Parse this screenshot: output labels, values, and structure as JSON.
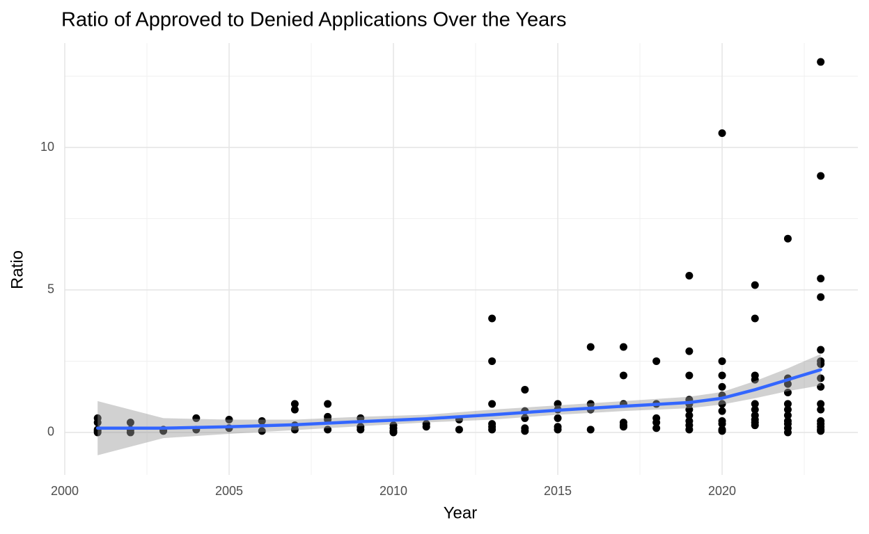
{
  "chart_data": {
    "type": "scatter",
    "title": "Ratio of Approved to Denied Applications Over the Years",
    "x_label": "Year",
    "y_label": "Ratio",
    "xlim": [
      2000,
      2024.13
    ],
    "ylim": [
      -1.49,
      13.66
    ],
    "xticks": [
      2000,
      2005,
      2010,
      2015,
      2020
    ],
    "yticks": [
      0,
      5,
      10
    ],
    "grid": true,
    "minor_grid": true,
    "color": "#000000",
    "x": [
      2001,
      2001,
      2001,
      2001,
      2001,
      2002,
      2002,
      2002,
      2003,
      2003,
      2004,
      2004,
      2005,
      2005,
      2006,
      2006,
      2007,
      2007,
      2007,
      2007,
      2008,
      2008,
      2008,
      2008,
      2009,
      2009,
      2009,
      2010,
      2010,
      2010,
      2010,
      2011,
      2011,
      2012,
      2012,
      2013,
      2013,
      2013,
      2013,
      2013,
      2013,
      2014,
      2014,
      2014,
      2014,
      2014,
      2015,
      2015,
      2015,
      2015,
      2015,
      2016,
      2016,
      2016,
      2016,
      2017,
      2017,
      2017,
      2017,
      2017,
      2017,
      2018,
      2018,
      2018,
      2018,
      2018,
      2019,
      2019,
      2019,
      2019,
      2019,
      2019,
      2019,
      2019,
      2019,
      2019,
      2020,
      2020,
      2020,
      2020,
      2020,
      2020,
      2020,
      2020,
      2020,
      2020,
      2020,
      2021,
      2021,
      2021,
      2021,
      2021,
      2021,
      2021,
      2021,
      2021,
      2021,
      2022,
      2022,
      2022,
      2022,
      2022,
      2022,
      2022,
      2022,
      2022,
      2022,
      2022,
      2023,
      2023,
      2023,
      2023,
      2023,
      2023,
      2023,
      2023,
      2023,
      2023,
      2023,
      2023,
      2023,
      2023,
      2023,
      2023
    ],
    "y": [
      0.5,
      0.35,
      0.1,
      0.05,
      0.0,
      0.35,
      0.1,
      0.0,
      0.1,
      0.05,
      0.5,
      0.1,
      0.45,
      0.15,
      0.4,
      0.05,
      1.0,
      0.8,
      0.25,
      0.1,
      1.0,
      0.55,
      0.45,
      0.1,
      0.5,
      0.2,
      0.1,
      0.25,
      0.15,
      0.05,
      0.0,
      0.3,
      0.2,
      0.45,
      0.1,
      4.0,
      2.5,
      1.0,
      0.3,
      0.2,
      0.1,
      1.5,
      0.75,
      0.5,
      0.15,
      0.05,
      1.0,
      0.8,
      0.5,
      0.2,
      0.1,
      3.0,
      1.0,
      0.8,
      0.1,
      3.0,
      2.0,
      1.0,
      0.35,
      0.25,
      0.2,
      2.5,
      1.0,
      0.5,
      0.35,
      0.15,
      5.5,
      2.85,
      2.0,
      1.15,
      1.0,
      0.8,
      0.6,
      0.4,
      0.25,
      0.1,
      10.5,
      2.5,
      2.0,
      1.6,
      1.3,
      1.0,
      0.75,
      0.4,
      0.3,
      0.1,
      0.05,
      5.17,
      4.0,
      2.0,
      1.85,
      1.0,
      0.8,
      0.6,
      0.45,
      0.35,
      0.25,
      6.8,
      1.9,
      1.7,
      1.4,
      1.0,
      0.8,
      0.6,
      0.4,
      0.3,
      0.15,
      0.0,
      13.0,
      9.0,
      5.4,
      4.75,
      2.9,
      2.5,
      2.4,
      1.9,
      1.6,
      1.0,
      0.8,
      0.4,
      0.3,
      0.2,
      0.1,
      0.05
    ],
    "smooth": {
      "color": "#3366ff",
      "band_color": "#999999",
      "x": [
        2001,
        2003,
        2005,
        2007,
        2009,
        2011,
        2013,
        2015,
        2017,
        2019,
        2020,
        2021,
        2022,
        2023
      ],
      "y": [
        0.15,
        0.15,
        0.2,
        0.27,
        0.38,
        0.48,
        0.62,
        0.78,
        0.92,
        1.05,
        1.2,
        1.5,
        1.85,
        2.2
      ],
      "lower": [
        -0.8,
        -0.2,
        -0.05,
        0.08,
        0.22,
        0.35,
        0.45,
        0.62,
        0.75,
        0.85,
        0.98,
        1.2,
        1.45,
        1.65
      ],
      "upper": [
        1.1,
        0.5,
        0.45,
        0.45,
        0.55,
        0.62,
        0.8,
        0.95,
        1.1,
        1.25,
        1.42,
        1.8,
        2.25,
        2.75
      ]
    }
  }
}
